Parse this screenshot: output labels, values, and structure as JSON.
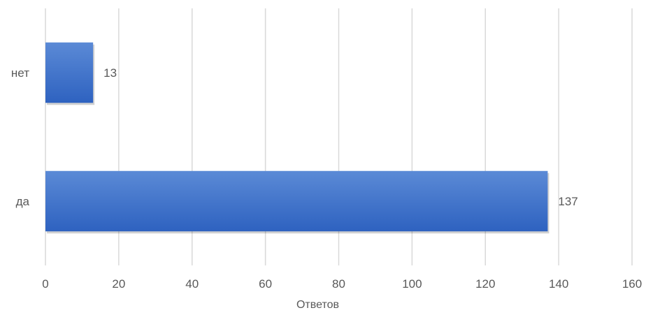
{
  "chart_data": {
    "type": "bar",
    "orientation": "horizontal",
    "categories": [
      "да",
      "нет"
    ],
    "values": [
      137,
      13
    ],
    "data_labels": [
      "137",
      "13"
    ],
    "xlabel": "Ответов",
    "ylabel": "",
    "xlim": [
      0,
      160
    ],
    "x_ticks": [
      0,
      20,
      40,
      60,
      80,
      100,
      120,
      140,
      160
    ],
    "x_tick_labels": [
      "0",
      "20",
      "40",
      "60",
      "80",
      "100",
      "120",
      "140",
      "160"
    ],
    "grid": true,
    "legend": "none",
    "colors": {
      "bar_light": "#5b8ad6",
      "bar_dark": "#2e62c0",
      "grid": "#d9d9d9",
      "text": "#595959"
    }
  }
}
